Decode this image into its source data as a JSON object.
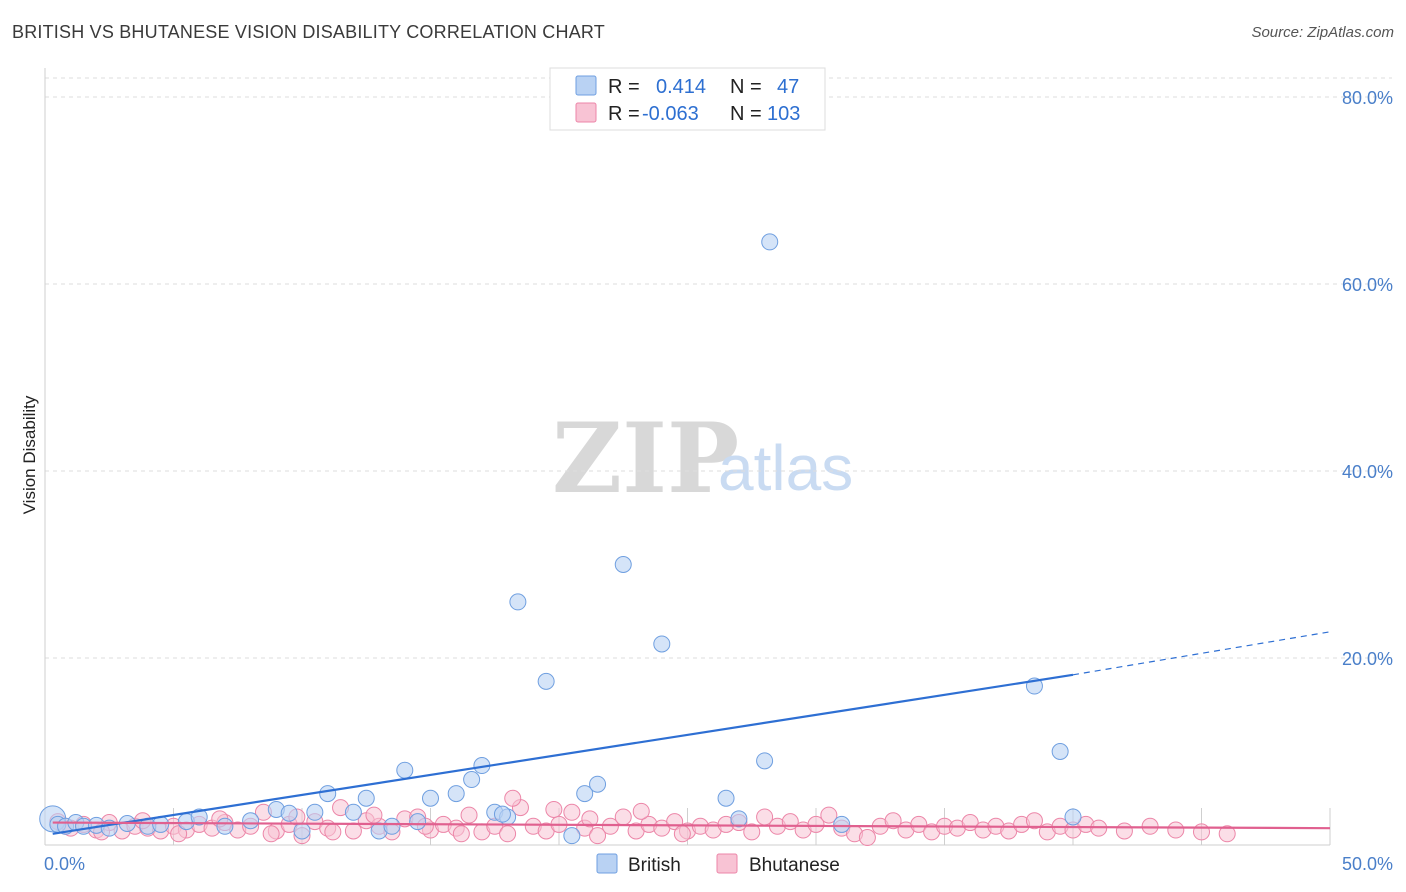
{
  "title": "BRITISH VS BHUTANESE VISION DISABILITY CORRELATION CHART",
  "source": "Source: ZipAtlas.com",
  "watermark": {
    "part1": "ZIP",
    "part2": "atlas"
  },
  "colors": {
    "british": "#6f9fe0",
    "british_fill": "#b9d2f3",
    "bhutanese": "#ec86a8",
    "bhutanese_fill": "#f8c3d4",
    "blue_line": "#2e6fd3",
    "pink_line": "#e0608f",
    "accent_text": "#4a7fc9"
  },
  "legend": {
    "rows": [
      {
        "r_label": "R =",
        "r_value": "0.414",
        "n_label": "N =",
        "n_value": "47"
      },
      {
        "r_label": "R =",
        "r_value": "-0.063",
        "n_label": "N =",
        "n_value": "103"
      }
    ]
  },
  "bottom_legend": [
    "British",
    "Bhutanese"
  ],
  "chart_data": {
    "type": "scatter",
    "title": "BRITISH VS BHUTANESE VISION DISABILITY CORRELATION CHART",
    "xlabel": "",
    "ylabel": "Vision Disability",
    "xlim": [
      0,
      50
    ],
    "ylim": [
      0,
      85
    ],
    "x_tick_labels": [
      "0.0%",
      "50.0%"
    ],
    "y_ticks": [
      20,
      40,
      60,
      80
    ],
    "y_tick_labels": [
      "20.0%",
      "40.0%",
      "60.0%",
      "80.0%"
    ],
    "grid": true,
    "series": [
      {
        "name": "British",
        "R": 0.414,
        "N": 47,
        "trend": {
          "x0": 0.3,
          "y0": 1.2,
          "x1": 40,
          "y1": 18.2,
          "dash_to_x": 50,
          "dash_to_y": 22.8
        },
        "points": [
          [
            0.3,
            2.8
          ],
          [
            0.5,
            2.2
          ],
          [
            0.8,
            2.0
          ],
          [
            1.2,
            2.4
          ],
          [
            1.5,
            2.0
          ],
          [
            2.0,
            2.1
          ],
          [
            2.5,
            1.8
          ],
          [
            3.2,
            2.3
          ],
          [
            4.0,
            2.0
          ],
          [
            4.5,
            2.2
          ],
          [
            5.5,
            2.5
          ],
          [
            6.0,
            3.0
          ],
          [
            7.0,
            2.0
          ],
          [
            8.0,
            2.6
          ],
          [
            9.0,
            3.8
          ],
          [
            9.5,
            3.4
          ],
          [
            10.0,
            1.5
          ],
          [
            10.5,
            3.5
          ],
          [
            11.0,
            5.5
          ],
          [
            12.0,
            3.5
          ],
          [
            12.5,
            5.0
          ],
          [
            13.0,
            1.5
          ],
          [
            13.5,
            2.0
          ],
          [
            14.0,
            8.0
          ],
          [
            14.5,
            2.5
          ],
          [
            15.0,
            5.0
          ],
          [
            16.0,
            5.5
          ],
          [
            17.0,
            8.5
          ],
          [
            17.5,
            3.5
          ],
          [
            18.0,
            3.0
          ],
          [
            16.6,
            7.0
          ],
          [
            17.8,
            3.3
          ],
          [
            18.4,
            26.0
          ],
          [
            19.5,
            17.5
          ],
          [
            20.5,
            1.0
          ],
          [
            21.0,
            5.5
          ],
          [
            21.5,
            6.5
          ],
          [
            22.5,
            30.0
          ],
          [
            24.0,
            21.5
          ],
          [
            26.5,
            5.0
          ],
          [
            27.0,
            2.8
          ],
          [
            28.0,
            9.0
          ],
          [
            28.2,
            64.5
          ],
          [
            31.0,
            2.2
          ],
          [
            38.5,
            17.0
          ],
          [
            39.5,
            10.0
          ],
          [
            40.0,
            3.0
          ]
        ]
      },
      {
        "name": "Bhutanese",
        "R": -0.063,
        "N": 103,
        "trend": {
          "x0": 0.3,
          "y0": 2.4,
          "x1": 50,
          "y1": 1.8
        },
        "points": [
          [
            0.5,
            2.5
          ],
          [
            0.8,
            2.0
          ],
          [
            1.0,
            1.8
          ],
          [
            1.5,
            2.2
          ],
          [
            2.0,
            1.6
          ],
          [
            2.5,
            2.4
          ],
          [
            3.0,
            1.5
          ],
          [
            3.5,
            2.0
          ],
          [
            4.0,
            1.8
          ],
          [
            4.5,
            1.5
          ],
          [
            5.0,
            2.0
          ],
          [
            5.5,
            1.6
          ],
          [
            6.0,
            2.2
          ],
          [
            6.5,
            1.8
          ],
          [
            7.0,
            2.4
          ],
          [
            7.5,
            1.6
          ],
          [
            8.0,
            2.0
          ],
          [
            8.5,
            3.5
          ],
          [
            9.0,
            1.5
          ],
          [
            9.5,
            2.2
          ],
          [
            10.0,
            1.0
          ],
          [
            10.5,
            2.5
          ],
          [
            11.0,
            1.8
          ],
          [
            11.5,
            4.0
          ],
          [
            12.0,
            1.5
          ],
          [
            12.5,
            2.6
          ],
          [
            13.0,
            2.0
          ],
          [
            13.5,
            1.4
          ],
          [
            14.0,
            2.8
          ],
          [
            14.5,
            3.0
          ],
          [
            15.0,
            1.6
          ],
          [
            15.5,
            2.2
          ],
          [
            16.0,
            1.8
          ],
          [
            16.5,
            3.2
          ],
          [
            17.0,
            1.4
          ],
          [
            17.5,
            2.0
          ],
          [
            18.0,
            1.2
          ],
          [
            18.5,
            4.0
          ],
          [
            19.0,
            2.0
          ],
          [
            19.5,
            1.5
          ],
          [
            20.0,
            2.2
          ],
          [
            20.5,
            3.5
          ],
          [
            21.0,
            1.8
          ],
          [
            21.5,
            1.0
          ],
          [
            22.0,
            2.0
          ],
          [
            22.5,
            3.0
          ],
          [
            23.0,
            1.5
          ],
          [
            23.5,
            2.2
          ],
          [
            24.0,
            1.8
          ],
          [
            24.5,
            2.5
          ],
          [
            25.0,
            1.5
          ],
          [
            25.5,
            2.0
          ],
          [
            26.0,
            1.6
          ],
          [
            26.5,
            2.2
          ],
          [
            27.0,
            2.4
          ],
          [
            27.5,
            1.4
          ],
          [
            28.0,
            3.0
          ],
          [
            28.5,
            2.0
          ],
          [
            29.0,
            2.5
          ],
          [
            29.5,
            1.6
          ],
          [
            30.0,
            2.2
          ],
          [
            30.5,
            3.2
          ],
          [
            31.0,
            1.8
          ],
          [
            31.5,
            1.2
          ],
          [
            32.0,
            0.8
          ],
          [
            32.5,
            2.0
          ],
          [
            33.0,
            2.6
          ],
          [
            33.5,
            1.6
          ],
          [
            34.0,
            2.2
          ],
          [
            34.5,
            1.4
          ],
          [
            35.0,
            2.0
          ],
          [
            35.5,
            1.8
          ],
          [
            36.0,
            2.4
          ],
          [
            36.5,
            1.6
          ],
          [
            37.0,
            2.0
          ],
          [
            37.5,
            1.5
          ],
          [
            38.0,
            2.2
          ],
          [
            38.5,
            2.6
          ],
          [
            39.0,
            1.4
          ],
          [
            39.5,
            2.0
          ],
          [
            40.0,
            1.6
          ],
          [
            40.5,
            2.2
          ],
          [
            41.0,
            1.8
          ],
          [
            42.0,
            1.5
          ],
          [
            43.0,
            2.0
          ],
          [
            44.0,
            1.6
          ],
          [
            45.0,
            1.4
          ],
          [
            46.0,
            1.2
          ],
          [
            2.2,
            1.4
          ],
          [
            3.8,
            2.6
          ],
          [
            5.2,
            1.2
          ],
          [
            6.8,
            2.8
          ],
          [
            8.8,
            1.2
          ],
          [
            9.8,
            3.0
          ],
          [
            11.2,
            1.4
          ],
          [
            12.8,
            3.2
          ],
          [
            14.8,
            2.0
          ],
          [
            16.2,
            1.2
          ],
          [
            18.2,
            5.0
          ],
          [
            19.8,
            3.8
          ],
          [
            21.2,
            2.8
          ],
          [
            23.2,
            3.6
          ],
          [
            24.8,
            1.2
          ]
        ]
      }
    ]
  }
}
